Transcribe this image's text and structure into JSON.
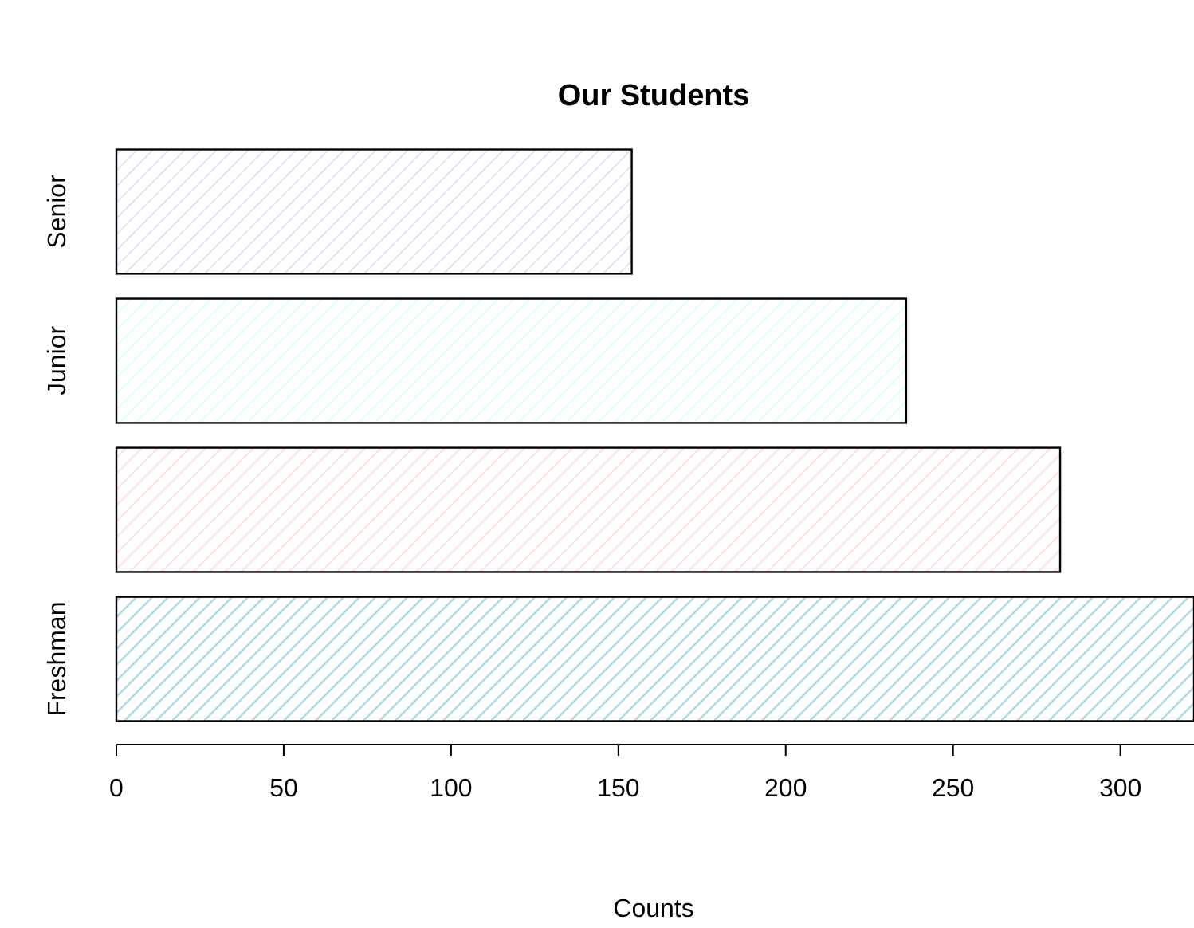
{
  "chart_data": {
    "type": "bar",
    "orientation": "horizontal",
    "title": "Our Students",
    "xlabel": "Counts",
    "categories": [
      "Senior",
      "Junior",
      null,
      "Freshman"
    ],
    "values": [
      154,
      236,
      282,
      322
    ],
    "colors": [
      "#e6e6fa",
      "#e0ffff",
      "#ffe4e1",
      "#add8e6"
    ],
    "xlim": [
      0,
      322
    ],
    "xticks": [
      0,
      50,
      100,
      150,
      200,
      250,
      300
    ],
    "grid": false
  }
}
